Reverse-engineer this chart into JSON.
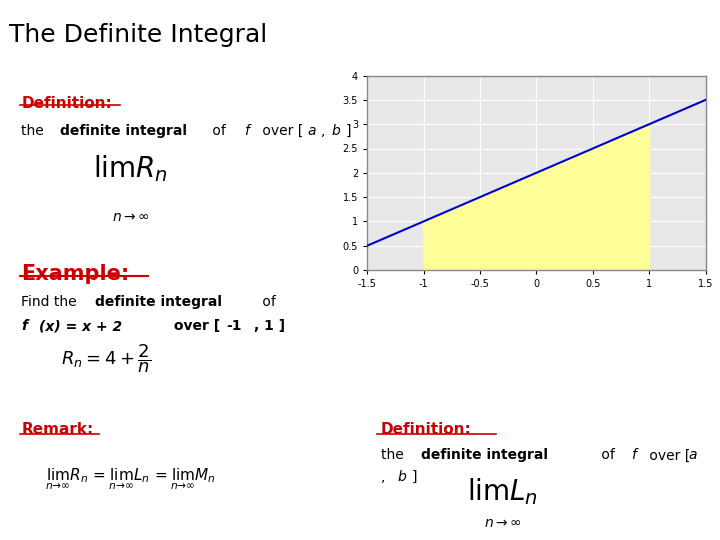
{
  "title": "The Definite Integral",
  "title_bg": "#a8d0e8",
  "title_color": "#000000",
  "box_bg": "#f5f0d0",
  "box_border": "#8888aa",
  "main_bg": "#ffffff",
  "red_label": "#cc0000",
  "blue_line": "#0000cc",
  "fill_color": "#ffff99",
  "graph_bg": "#e8e8e8",
  "graph_border": "#888888",
  "xlim": [
    -1.5,
    1.5
  ],
  "ylim": [
    0,
    4
  ],
  "xticks": [
    -1.5,
    -1.0,
    -0.5,
    0.0,
    0.5,
    1.0,
    1.5
  ],
  "yticks": [
    0,
    0.5,
    1.0,
    1.5,
    2.0,
    2.5,
    3.0,
    3.5,
    4.0
  ],
  "xtick_labels": [
    "-1.5",
    "-1",
    "-0.5",
    "0",
    "0.5",
    "1",
    "1.5"
  ],
  "ytick_labels": [
    "0",
    "0.5",
    "1",
    "1.5",
    "2",
    "2.5",
    "3",
    "3.5",
    "4"
  ],
  "def1_title": "Definition:",
  "example_title": "Example:",
  "remark_title": "Remark:",
  "def2_title": "Definition:"
}
